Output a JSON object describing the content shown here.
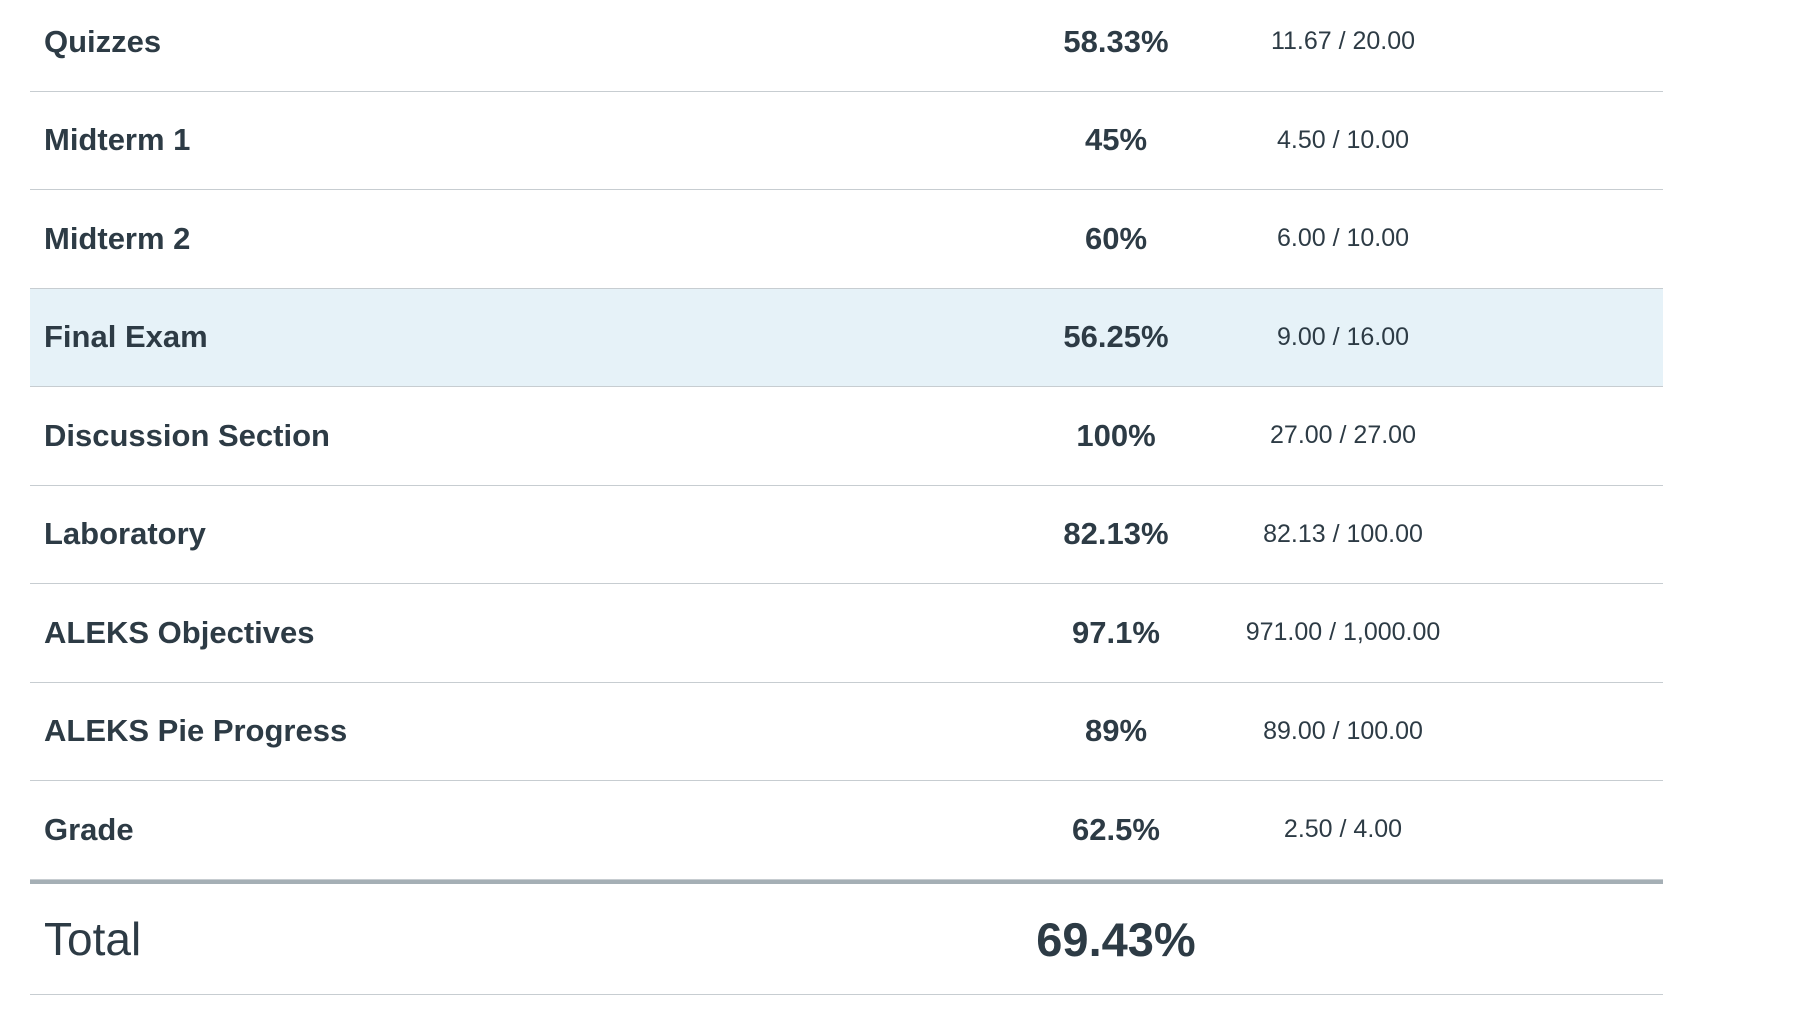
{
  "table": {
    "rows": [
      [
        "Quizzes",
        "58.33%",
        "11.67 / 20.00"
      ],
      [
        "Midterm 1",
        "45%",
        "4.50 / 10.00"
      ],
      [
        "Midterm 2",
        "60%",
        "6.00 / 10.00"
      ],
      [
        "Final Exam",
        "56.25%",
        "9.00 / 16.00"
      ],
      [
        "Discussion Section",
        "100%",
        "27.00 / 27.00"
      ],
      [
        "Laboratory",
        "82.13%",
        "82.13 / 100.00"
      ],
      [
        "ALEKS Objectives",
        "97.1%",
        "971.00 / 1,000.00"
      ],
      [
        "ALEKS Pie Progress",
        "89%",
        "89.00 / 100.00"
      ],
      [
        "Grade",
        "62.5%",
        "2.50 / 4.00"
      ]
    ],
    "total": {
      "label": "Total",
      "value": "69.43%"
    }
  }
}
